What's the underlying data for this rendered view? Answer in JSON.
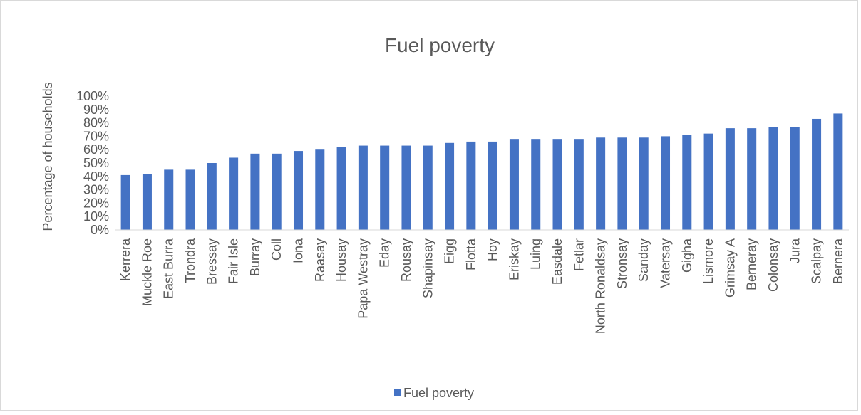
{
  "chart_data": {
    "type": "bar",
    "title": "Fuel poverty",
    "xlabel": "",
    "ylabel": "Percentage of households",
    "ylim": [
      0,
      1.0
    ],
    "yticks": [
      "0%",
      "10%",
      "20%",
      "30%",
      "40%",
      "50%",
      "60%",
      "70%",
      "80%",
      "90%",
      "100%"
    ],
    "grid": false,
    "legend_position": "bottom",
    "bar_color": "#4472c4",
    "categories": [
      "Kerrera",
      "Muckle Roe",
      "East Burra",
      "Trondra",
      "Bressay",
      "Fair Isle",
      "Burray",
      "Coll",
      "Iona",
      "Raasay",
      "Housay",
      "Papa Westray",
      "Eday",
      "Rousay",
      "Shapinsay",
      "Eigg",
      "Flotta",
      "Hoy",
      "Eriskay",
      "Luing",
      "Easdale",
      "Fetlar",
      "North Ronaldsay",
      "Stronsay",
      "Sanday",
      "Vatersay",
      "Gigha",
      "Lismore",
      "Grimsay A",
      "Berneray",
      "Colonsay",
      "Jura",
      "Scalpay",
      "Bernera"
    ],
    "series": [
      {
        "name": "Fuel poverty",
        "values": [
          0.41,
          0.42,
          0.45,
          0.45,
          0.5,
          0.54,
          0.57,
          0.57,
          0.59,
          0.6,
          0.62,
          0.63,
          0.63,
          0.63,
          0.63,
          0.65,
          0.66,
          0.66,
          0.68,
          0.68,
          0.68,
          0.68,
          0.69,
          0.69,
          0.69,
          0.7,
          0.71,
          0.72,
          0.76,
          0.76,
          0.77,
          0.77,
          0.83,
          0.87
        ]
      }
    ]
  }
}
